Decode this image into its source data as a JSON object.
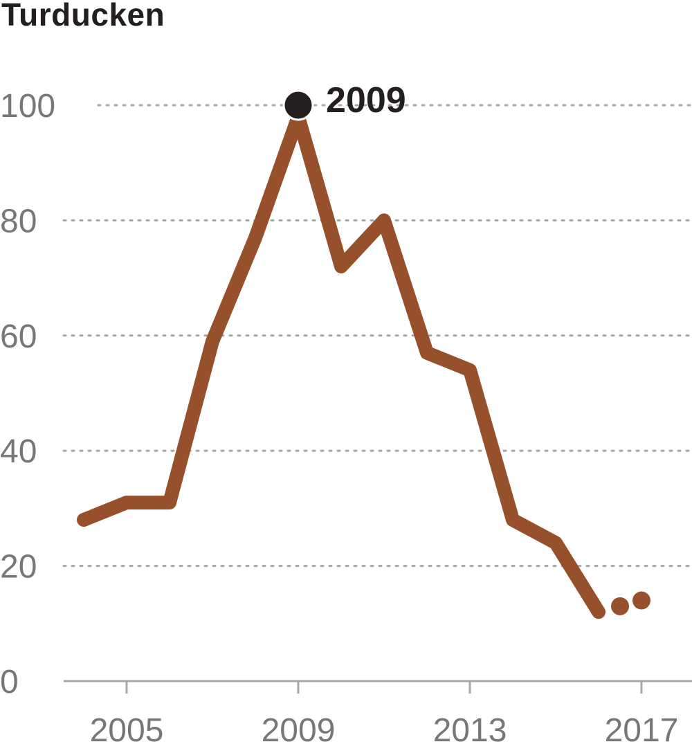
{
  "chart_data": {
    "type": "line",
    "title": "Turducken",
    "xlabel": "",
    "ylabel": "",
    "x": [
      2004,
      2005,
      2006,
      2007,
      2008,
      2009,
      2010,
      2011,
      2012,
      2013,
      2014,
      2015,
      2016
    ],
    "series": [
      {
        "values": [
          28,
          31,
          31,
          59,
          77,
          98,
          72,
          80,
          57,
          54,
          28,
          24,
          12
        ]
      }
    ],
    "extra_points": [
      {
        "x": 2016.5,
        "y": 13
      },
      {
        "x": 2017,
        "y": 14
      }
    ],
    "highlight": {
      "x": 2009,
      "y": 100,
      "label": "2009"
    },
    "xlim": [
      2003.6,
      2018.2
    ],
    "ylim": [
      0,
      100
    ],
    "y_ticks": [
      0,
      20,
      40,
      60,
      80,
      100
    ],
    "y_tick_labels": [
      "0",
      "20",
      "40",
      "60",
      "80",
      "100"
    ],
    "x_ticks": [
      2005,
      2009,
      2013,
      2017
    ],
    "x_tick_labels": [
      "2005",
      "2009",
      "2013",
      "2017"
    ],
    "grid": true,
    "line_color": "#96502b",
    "highlight_color": "#231f20",
    "grid_color": "#a7a7a7",
    "axis_color": "#a7a7a7",
    "tick_label_color": "#777777"
  }
}
